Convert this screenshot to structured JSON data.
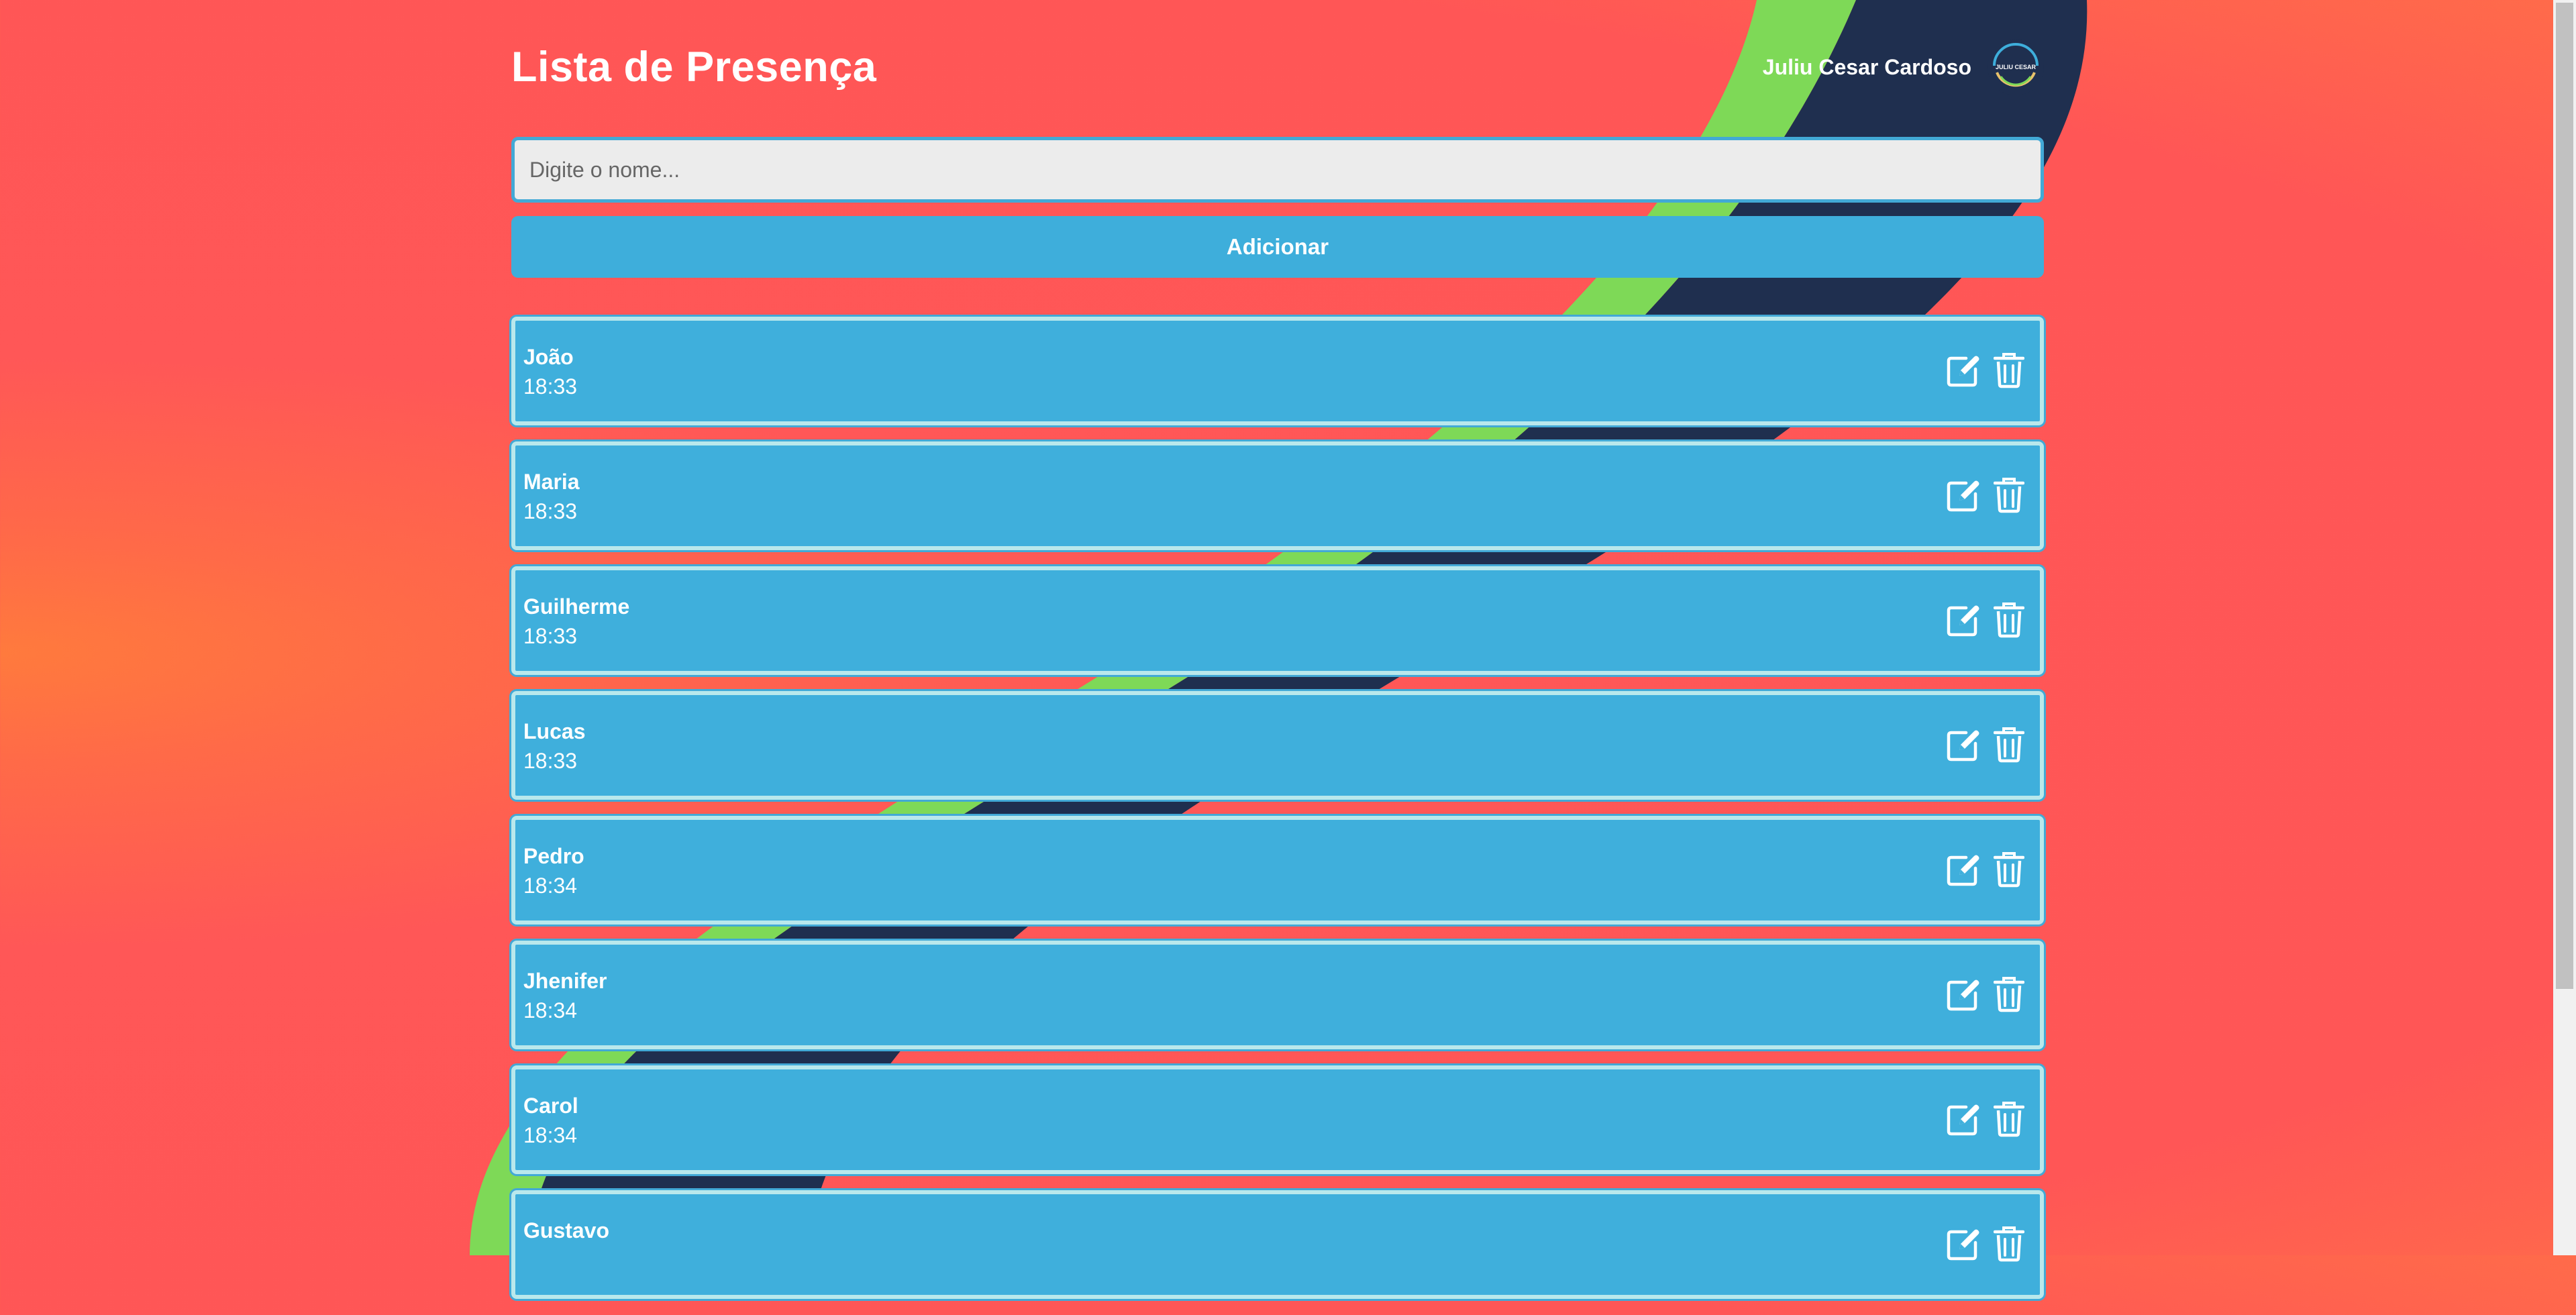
{
  "header": {
    "title": "Lista de Presença",
    "user_name": "Juliu Cesar Cardoso",
    "avatar_text": "JULIU CESAR"
  },
  "form": {
    "name_placeholder": "Digite o nome...",
    "name_value": "",
    "add_label": "Adicionar"
  },
  "attendees": [
    {
      "name": "João",
      "time": "18:33"
    },
    {
      "name": "Maria",
      "time": "18:33"
    },
    {
      "name": "Guilherme",
      "time": "18:33"
    },
    {
      "name": "Lucas",
      "time": "18:33"
    },
    {
      "name": "Pedro",
      "time": "18:34"
    },
    {
      "name": "Jhenifer",
      "time": "18:34"
    },
    {
      "name": "Carol",
      "time": "18:34"
    },
    {
      "name": "Gustavo",
      "time": ""
    }
  ],
  "icons": {
    "edit": "edit-icon",
    "delete": "trash-icon"
  },
  "colors": {
    "background": "#ff5656",
    "background_glow": "#ff7a3d",
    "accent_blue": "#3fafdc",
    "item_border": "#b9e8ec",
    "stripe_green": "#7ed957",
    "stripe_navy": "#1f2f4f",
    "text": "#ffffff"
  }
}
